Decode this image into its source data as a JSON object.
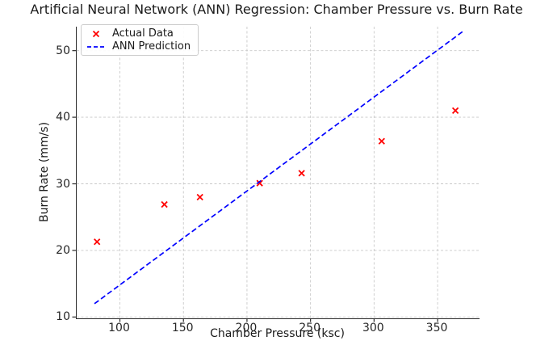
{
  "colors": {
    "actual": "#ff0000",
    "prediction": "#0000ff",
    "grid": "#c9c9c9",
    "axis": "#2b2b2b",
    "tick_text": "#262626",
    "legend_border": "#cccccc"
  },
  "legend": {
    "position": "upper left"
  },
  "chart_data": {
    "type": "scatter",
    "title": "Artificial Neural Network (ANN) Regression: Chamber Pressure vs. Burn Rate",
    "xlabel": "Chamber Pressure (ksc)",
    "ylabel": "Burn Rate (mm/s)",
    "xlim": [
      66,
      383
    ],
    "ylim": [
      9.8,
      53.6
    ],
    "xticks": [
      100,
      150,
      200,
      250,
      300,
      350
    ],
    "yticks": [
      10,
      20,
      30,
      40,
      50
    ],
    "grid": true,
    "legend_position": "upper left",
    "series": [
      {
        "name": "Actual Data",
        "type": "scatter",
        "marker": "x",
        "color": "#ff0000",
        "points": [
          [
            82,
            21.3
          ],
          [
            135,
            26.9
          ],
          [
            163,
            28.0
          ],
          [
            210,
            30.1
          ],
          [
            243,
            31.6
          ],
          [
            306,
            36.4
          ],
          [
            364,
            41.0
          ]
        ]
      },
      {
        "name": "ANN Prediction",
        "type": "line",
        "style": "dashed",
        "color": "#0000ff",
        "points": [
          [
            80,
            12.0
          ],
          [
            370,
            52.9
          ]
        ]
      }
    ]
  }
}
